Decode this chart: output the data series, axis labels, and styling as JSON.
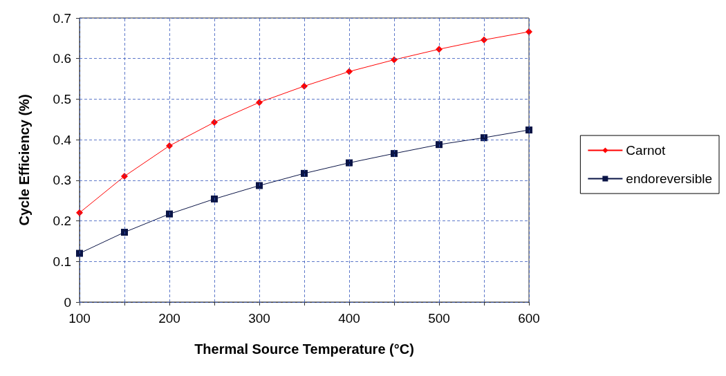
{
  "chart_data": {
    "type": "line",
    "xlabel": "Thermal Source Temperature (°C)",
    "ylabel": "Cycle Efficiency (%)",
    "x": [
      100,
      150,
      200,
      250,
      300,
      350,
      400,
      450,
      500,
      550,
      600
    ],
    "series": [
      {
        "name": "Carnot",
        "color": "#ff0000",
        "marker": "diamond",
        "values": [
          0.22,
          0.31,
          0.385,
          0.443,
          0.492,
          0.532,
          0.568,
          0.597,
          0.623,
          0.646,
          0.666
        ]
      },
      {
        "name": "endoreversible",
        "color": "#0a1446",
        "marker": "square",
        "values": [
          0.12,
          0.172,
          0.217,
          0.254,
          0.287,
          0.317,
          0.343,
          0.366,
          0.388,
          0.405,
          0.424
        ]
      }
    ],
    "xlim": [
      100,
      600
    ],
    "xticks": [
      100,
      {
        "value": 150,
        "label": null
      },
      200,
      {
        "value": 250,
        "label": null
      },
      300,
      {
        "value": 350,
        "label": null
      },
      400,
      {
        "value": 450,
        "label": null
      },
      500,
      {
        "value": 550,
        "label": null
      },
      600
    ],
    "ylim": [
      0,
      0.7
    ],
    "yticks": [
      0,
      0.1,
      0.2,
      0.3,
      0.4,
      0.5,
      0.6,
      0.7
    ],
    "grid": true,
    "legend": "right",
    "line_style": "solid"
  }
}
